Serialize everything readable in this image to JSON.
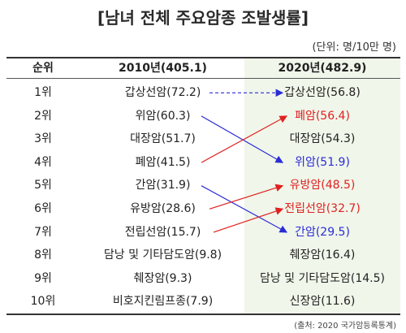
{
  "title": "[남녀 전체 주요암종 조발생률]",
  "unit": "(단위: 명/10만 명)",
  "headers": {
    "rank": "순위",
    "y2010": "2010년(405.1)",
    "y2020": "2020년(482.9)"
  },
  "rows": [
    {
      "rank": "1위",
      "y2010": "갑상선암(72.2)",
      "y2020": "갑상선암(56.8)"
    },
    {
      "rank": "2위",
      "y2010": "위암(60.3)",
      "y2020": "폐암(56.4)"
    },
    {
      "rank": "3위",
      "y2010": "대장암(51.7)",
      "y2020": "대장암(54.3)"
    },
    {
      "rank": "4위",
      "y2010": "폐암(41.5)",
      "y2020": "위암(51.9)"
    },
    {
      "rank": "5위",
      "y2010": "간암(31.9)",
      "y2020": "유방암(48.5)"
    },
    {
      "rank": "6위",
      "y2010": "유방암(28.6)",
      "y2020": "전립선암(32.7)"
    },
    {
      "rank": "7위",
      "y2010": "전립선암(15.7)",
      "y2020": "간암(29.5)"
    },
    {
      "rank": "8위",
      "y2010": "담낭 및 기타담도암(9.8)",
      "y2020": "췌장암(16.4)"
    },
    {
      "rank": "9위",
      "y2010": "췌장암(9.3)",
      "y2020": "담낭 및 기타담도암(14.5)"
    },
    {
      "rank": "10위",
      "y2010": "비호지킨림프종(7.9)",
      "y2020": "신장암(11.6)"
    }
  ],
  "colors": {
    "up": "#e02020",
    "down": "#2b2bd6",
    "same": "#2b2bd6",
    "highlight_bg": "#f0f6ea"
  },
  "arrows": [
    {
      "from_rank": 1,
      "to_rank": 1,
      "direction": "same"
    },
    {
      "from_rank": 2,
      "to_rank": 4,
      "direction": "down"
    },
    {
      "from_rank": 4,
      "to_rank": 2,
      "direction": "up"
    },
    {
      "from_rank": 5,
      "to_rank": 7,
      "direction": "down"
    },
    {
      "from_rank": 6,
      "to_rank": 5,
      "direction": "up"
    },
    {
      "from_rank": 7,
      "to_rank": 6,
      "direction": "up"
    }
  ],
  "source": "(출처: 2020 국가암등록통계)"
}
